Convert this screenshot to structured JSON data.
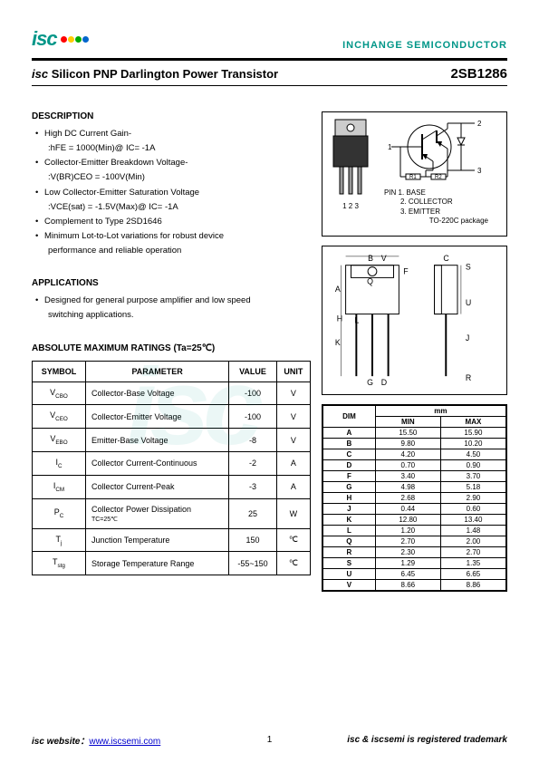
{
  "header": {
    "logo_text": "isc",
    "company": "INCHANGE SEMICONDUCTOR",
    "logo_colors": [
      "#ff0000",
      "#ffcc00",
      "#00aa00",
      "#0066cc"
    ]
  },
  "title": {
    "prefix": "isc",
    "main": " Silicon PNP Darlington Power Transistor",
    "part": "2SB1286"
  },
  "description": {
    "heading": "DESCRIPTION",
    "items": [
      {
        "line": "High DC Current Gain-",
        "sub": ":hFE = 1000(Min)@ IC= -1A"
      },
      {
        "line": "Collector-Emitter Breakdown Voltage-",
        "sub": ":V(BR)CEO = -100V(Min)"
      },
      {
        "line": "Low Collector-Emitter Saturation Voltage",
        "sub": ":VCE(sat) = -1.5V(Max)@ IC= -1A"
      },
      {
        "line": "Complement to Type 2SD1646"
      },
      {
        "line": "Minimum Lot-to-Lot variations for robust device",
        "sub2": "performance and reliable operation"
      }
    ]
  },
  "applications": {
    "heading": "APPLICATIONS",
    "items": [
      {
        "line": "Designed for general purpose amplifier and low speed",
        "sub2": "switching applications."
      }
    ]
  },
  "ratings": {
    "heading": "ABSOLUTE MAXIMUM RATINGS (Ta=25℃)",
    "columns": [
      "SYMBOL",
      "PARAMETER",
      "VALUE",
      "UNIT"
    ],
    "rows": [
      {
        "sym": "V",
        "sub": "CBO",
        "param": "Collector-Base Voltage",
        "value": "-100",
        "unit": "V"
      },
      {
        "sym": "V",
        "sub": "CEO",
        "param": "Collector-Emitter Voltage",
        "value": "-100",
        "unit": "V"
      },
      {
        "sym": "V",
        "sub": "EBO",
        "param": "Emitter-Base Voltage",
        "value": "-8",
        "unit": "V"
      },
      {
        "sym": "I",
        "sub": "C",
        "param": "Collector Current-Continuous",
        "value": "-2",
        "unit": "A"
      },
      {
        "sym": "I",
        "sub": "CM",
        "param": "Collector Current-Peak",
        "value": "-3",
        "unit": "A"
      },
      {
        "sym": "P",
        "sub": "C",
        "param": "Collector Power Dissipation",
        "param2": "TC=25℃",
        "value": "25",
        "unit": "W"
      },
      {
        "sym": "T",
        "sub": "j",
        "param": "Junction Temperature",
        "value": "150",
        "unit": "℃"
      },
      {
        "sym": "T",
        "sub": "stg",
        "param": "Storage Temperature Range",
        "value": "-55~150",
        "unit": "℃"
      }
    ]
  },
  "package": {
    "pins": [
      "1 2 3"
    ],
    "pin_labels": [
      "PIN 1. BASE",
      "2. COLLECTOR",
      "3. EMITTER"
    ],
    "pkg_name": "TO-220C package"
  },
  "dimensions": {
    "header_unit": "mm",
    "columns": [
      "DIM",
      "MIN",
      "MAX"
    ],
    "rows": [
      [
        "A",
        "15.50",
        "15.90"
      ],
      [
        "B",
        "9.80",
        "10.20"
      ],
      [
        "C",
        "4.20",
        "4.50"
      ],
      [
        "D",
        "0.70",
        "0.90"
      ],
      [
        "F",
        "3.40",
        "3.70"
      ],
      [
        "G",
        "4.98",
        "5.18"
      ],
      [
        "H",
        "2.68",
        "2.90"
      ],
      [
        "J",
        "0.44",
        "0.60"
      ],
      [
        "K",
        "12.80",
        "13.40"
      ],
      [
        "L",
        "1.20",
        "1.48"
      ],
      [
        "Q",
        "2.70",
        "2.00"
      ],
      [
        "R",
        "2.30",
        "2.70"
      ],
      [
        "S",
        "1.29",
        "1.35"
      ],
      [
        "U",
        "6.45",
        "6.65"
      ],
      [
        "V",
        "8.66",
        "8.86"
      ]
    ]
  },
  "footer": {
    "left_prefix": "isc website：",
    "left_link": "www.iscsemi.com",
    "page": "1",
    "right": "isc & iscsemi is registered trademark"
  },
  "watermark": "isc"
}
